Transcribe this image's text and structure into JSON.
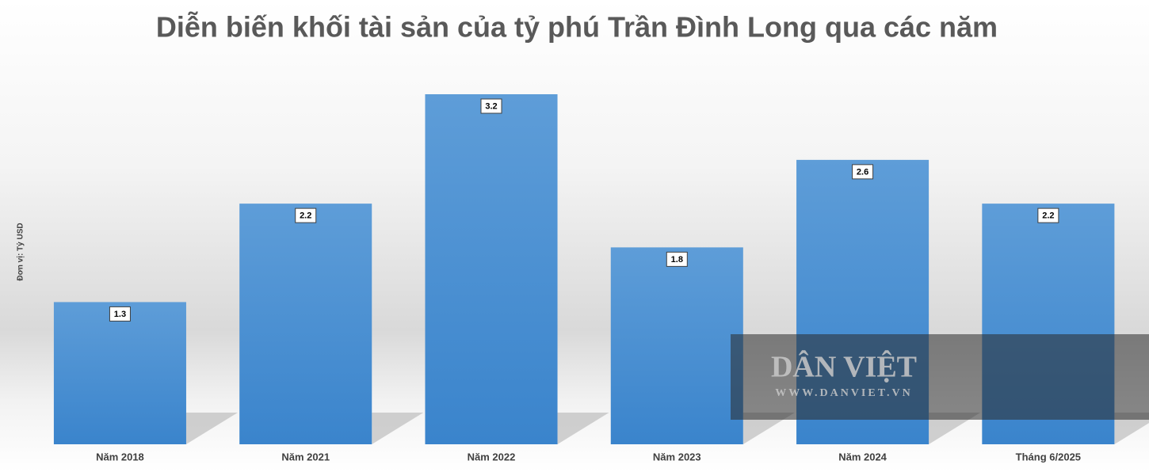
{
  "chart_data": {
    "type": "bar",
    "title": "Diễn biến khối tài sản của tỷ phú Trần Đình Long qua các năm",
    "y_label": "Đơn vị: Tỷ USD",
    "categories": [
      "Năm 2018",
      "Năm 2021",
      "Năm 2022",
      "Năm 2023",
      "Năm 2024",
      "Tháng 6/2025"
    ],
    "values": [
      1.3,
      2.2,
      3.2,
      1.8,
      2.6,
      2.2
    ],
    "color": "#4a8fd4",
    "ylim": [
      0,
      3.2
    ],
    "watermark": {
      "name": "DÂN VIỆT",
      "url": "WWW.DANVIET.VN"
    }
  }
}
